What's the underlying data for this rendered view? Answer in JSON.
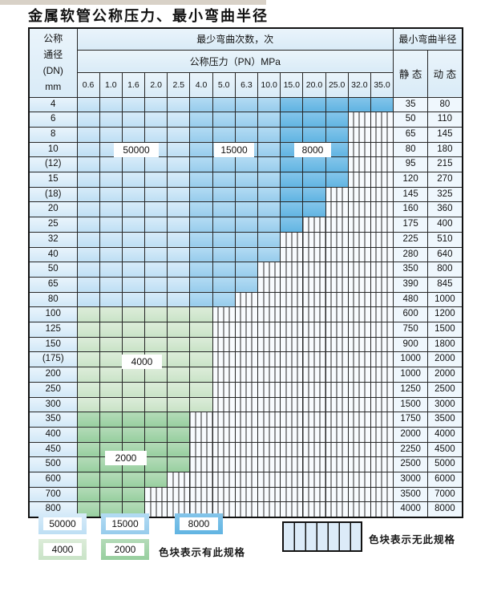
{
  "title": "金属软管公称压力、最小弯曲半径",
  "colors": {
    "cycles_50000": "#c9e4f6",
    "cycles_15000": "#a0d1ee",
    "cycles_8000": "#6fbbe5",
    "cycles_4000": "#d4e8d1",
    "cycles_2000": "#a6d4ac",
    "grid_line": "#262626"
  },
  "table": {
    "corner_header_lines": [
      "公称",
      "通径",
      "(DN)",
      "mm"
    ],
    "bend_cycles_header": "最少弯曲次数，次",
    "pressure_header": "公称压力（PN）MPa",
    "radius_header": "最小弯曲半径",
    "static_header": "静 态",
    "dynamic_header": "动 态",
    "pressure_columns": [
      "0.6",
      "1.0",
      "1.6",
      "2.0",
      "2.5",
      "4.0",
      "5.0",
      "6.3",
      "10.0",
      "15.0",
      "20.0",
      "25.0",
      "32.0",
      "35.0"
    ],
    "rows": [
      {
        "dn": "4",
        "scheme": "blue",
        "max_col": 13,
        "static": "35",
        "dynamic": "80"
      },
      {
        "dn": "6",
        "scheme": "blue",
        "max_col": 11,
        "static": "50",
        "dynamic": "110"
      },
      {
        "dn": "8",
        "scheme": "blue",
        "max_col": 11,
        "static": "65",
        "dynamic": "145"
      },
      {
        "dn": "10",
        "scheme": "blue",
        "max_col": 11,
        "static": "80",
        "dynamic": "180"
      },
      {
        "dn": "(12)",
        "scheme": "blue",
        "max_col": 11,
        "static": "95",
        "dynamic": "215"
      },
      {
        "dn": "15",
        "scheme": "blue",
        "max_col": 11,
        "static": "120",
        "dynamic": "270"
      },
      {
        "dn": "(18)",
        "scheme": "blue",
        "max_col": 10,
        "static": "145",
        "dynamic": "325"
      },
      {
        "dn": "20",
        "scheme": "blue",
        "max_col": 10,
        "static": "160",
        "dynamic": "360"
      },
      {
        "dn": "25",
        "scheme": "blue",
        "max_col": 9,
        "static": "175",
        "dynamic": "400"
      },
      {
        "dn": "32",
        "scheme": "blue",
        "max_col": 8,
        "static": "225",
        "dynamic": "510"
      },
      {
        "dn": "40",
        "scheme": "blue",
        "max_col": 8,
        "static": "280",
        "dynamic": "640"
      },
      {
        "dn": "50",
        "scheme": "blue",
        "max_col": 7,
        "static": "350",
        "dynamic": "800"
      },
      {
        "dn": "65",
        "scheme": "blue",
        "max_col": 7,
        "static": "390",
        "dynamic": "845"
      },
      {
        "dn": "80",
        "scheme": "blue",
        "max_col": 6,
        "static": "480",
        "dynamic": "1000"
      },
      {
        "dn": "100",
        "scheme": "green-light",
        "max_col": 5,
        "static": "600",
        "dynamic": "1200"
      },
      {
        "dn": "125",
        "scheme": "green-light",
        "max_col": 5,
        "static": "750",
        "dynamic": "1500"
      },
      {
        "dn": "150",
        "scheme": "green-light",
        "max_col": 5,
        "static": "900",
        "dynamic": "1800"
      },
      {
        "dn": "(175)",
        "scheme": "green-light",
        "max_col": 5,
        "static": "1000",
        "dynamic": "2000"
      },
      {
        "dn": "200",
        "scheme": "green-light",
        "max_col": 5,
        "static": "1000",
        "dynamic": "2000"
      },
      {
        "dn": "250",
        "scheme": "green-light",
        "max_col": 5,
        "static": "1250",
        "dynamic": "2500"
      },
      {
        "dn": "300",
        "scheme": "green-light",
        "max_col": 5,
        "static": "1500",
        "dynamic": "3000"
      },
      {
        "dn": "350",
        "scheme": "green-dark",
        "max_col": 4,
        "static": "1750",
        "dynamic": "3500"
      },
      {
        "dn": "400",
        "scheme": "green-dark",
        "max_col": 4,
        "static": "2000",
        "dynamic": "4000"
      },
      {
        "dn": "450",
        "scheme": "green-dark",
        "max_col": 4,
        "static": "2250",
        "dynamic": "4500"
      },
      {
        "dn": "500",
        "scheme": "green-dark",
        "max_col": 4,
        "static": "2500",
        "dynamic": "5000"
      },
      {
        "dn": "600",
        "scheme": "green-dark",
        "max_col": 3,
        "static": "3000",
        "dynamic": "6000"
      },
      {
        "dn": "700",
        "scheme": "green-dark",
        "max_col": 2,
        "static": "3500",
        "dynamic": "7000"
      },
      {
        "dn": "800",
        "scheme": "green-dark",
        "max_col": 2,
        "static": "4000",
        "dynamic": "8000"
      }
    ]
  },
  "overlay_labels": [
    {
      "id": "cycles-50000",
      "text": "50000"
    },
    {
      "id": "cycles-15000",
      "text": "15000"
    },
    {
      "id": "cycles-8000",
      "text": "8000"
    },
    {
      "id": "cycles-4000",
      "text": "4000"
    },
    {
      "id": "cycles-2000",
      "text": "2000"
    }
  ],
  "legend": {
    "items": [
      {
        "text": "50000",
        "shade": "cycles_50000"
      },
      {
        "text": "15000",
        "shade": "cycles_15000"
      },
      {
        "text": "8000",
        "shade": "cycles_8000"
      },
      {
        "text": "4000",
        "shade": "cycles_4000"
      },
      {
        "text": "2000",
        "shade": "cycles_2000"
      }
    ],
    "has_spec_text": "色块表示有此规格",
    "no_spec_text": "色块表示无此规格"
  }
}
